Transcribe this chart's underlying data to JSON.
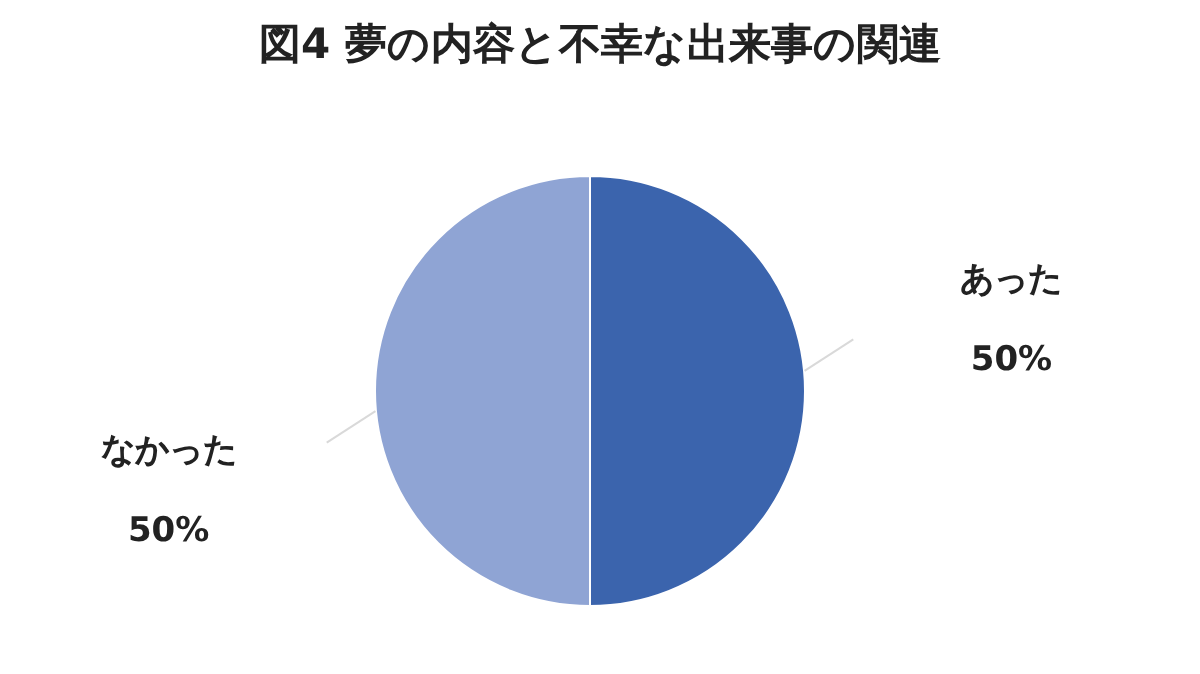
{
  "chart_data": {
    "type": "pie",
    "title": "図4 夢の内容と不幸な出来事の関連",
    "categories": [
      "あった",
      "なかった"
    ],
    "values": [
      50,
      50
    ],
    "colors": [
      "#3b64ad",
      "#8fa4d4"
    ],
    "value_labels": [
      "50%",
      "50%"
    ],
    "legend": false
  }
}
